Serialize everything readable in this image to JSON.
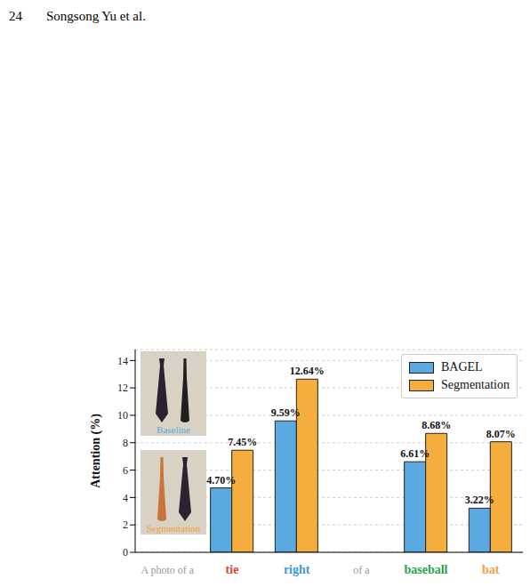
{
  "header": {
    "page": "24",
    "author": "Songsong Yu et al."
  },
  "insets": [
    {
      "label": "Baseline"
    },
    {
      "label": "Segmentation"
    }
  ],
  "chart_data": {
    "type": "bar",
    "y_label": "Attention (%)",
    "categories": [
      "A photo of a",
      "tie",
      "right",
      "of a",
      "baseball",
      "bat"
    ],
    "series": [
      {
        "name": "BAGEL",
        "color": "#5aa9e0",
        "values": [
          null,
          4.7,
          9.59,
          null,
          6.61,
          3.22
        ],
        "value_labels": [
          null,
          "4.70%",
          "9.59%",
          null,
          "6.61%",
          "3.22%"
        ]
      },
      {
        "name": "Segmentation",
        "color": "#f5ae3d",
        "values": [
          null,
          7.45,
          12.64,
          null,
          8.68,
          8.07
        ],
        "value_labels": [
          null,
          "7.45%",
          "12.64%",
          null,
          "8.68%",
          "8.07%"
        ]
      }
    ],
    "ylim": [
      0,
      14.8
    ],
    "yticks": [
      0,
      2,
      4,
      6,
      8,
      10,
      12,
      14
    ],
    "grid": true,
    "legend": "upper right",
    "data_labels": true
  }
}
